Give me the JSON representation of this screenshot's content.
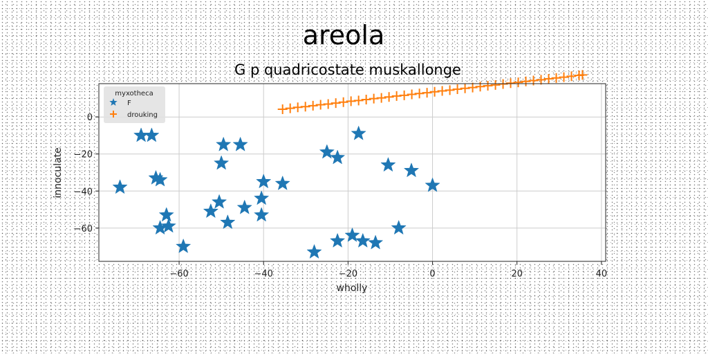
{
  "chart_data": {
    "type": "scatter",
    "title": "areola",
    "subtitle": "G p quadricostate muskallonge",
    "xlabel": "wholly",
    "ylabel": "innoculate",
    "xlim": [
      -79,
      41
    ],
    "ylim": [
      -78,
      18
    ],
    "xticks": [
      -60,
      -40,
      -20,
      0,
      20,
      40
    ],
    "xtick_labels": [
      "−60",
      "−40",
      "−20",
      "0",
      "20",
      "40"
    ],
    "yticks": [
      -60,
      -40,
      -20,
      0
    ],
    "ytick_labels": [
      "−60",
      "−40",
      "−20",
      "0"
    ],
    "grid": true,
    "legend": {
      "title": "myxotheca",
      "position": "top-left",
      "entries": [
        "F",
        "drouking"
      ]
    },
    "series": [
      {
        "name": "F",
        "marker": "star",
        "color": "#1f77b4",
        "points": [
          [
            -74,
            -38
          ],
          [
            -69,
            -10
          ],
          [
            -66.5,
            -10
          ],
          [
            -65.5,
            -33
          ],
          [
            -64.5,
            -34
          ],
          [
            -64.5,
            -60
          ],
          [
            -63,
            -53
          ],
          [
            -62.5,
            -59
          ],
          [
            -59,
            -70
          ],
          [
            -52.5,
            -51
          ],
          [
            -50.5,
            -46
          ],
          [
            -50,
            -25
          ],
          [
            -49.5,
            -15
          ],
          [
            -48.5,
            -57
          ],
          [
            -45.5,
            -15
          ],
          [
            -44.5,
            -49
          ],
          [
            -40.5,
            -44
          ],
          [
            -40.5,
            -53
          ],
          [
            -40,
            -35
          ],
          [
            -35.5,
            -36
          ],
          [
            -28,
            -73
          ],
          [
            -25,
            -19
          ],
          [
            -22.5,
            -22
          ],
          [
            -22.5,
            -67
          ],
          [
            -19,
            -64
          ],
          [
            -17.5,
            -9
          ],
          [
            -16.5,
            -67
          ],
          [
            -13.5,
            -68
          ],
          [
            -10.5,
            -26
          ],
          [
            -8,
            -60
          ],
          [
            -5,
            -29
          ],
          [
            0,
            -37
          ]
        ]
      },
      {
        "name": "drouking",
        "marker": "plus",
        "color": "#ff7f0e",
        "points": [
          [
            -35.5,
            4.2
          ],
          [
            -33.7,
            4.7
          ],
          [
            -31.9,
            5.2
          ],
          [
            -30.1,
            5.6
          ],
          [
            -28.3,
            6.1
          ],
          [
            -26.5,
            6.6
          ],
          [
            -24.7,
            7.0
          ],
          [
            -22.9,
            7.5
          ],
          [
            -21.1,
            8.0
          ],
          [
            -19.3,
            8.5
          ],
          [
            -17.5,
            8.9
          ],
          [
            -15.7,
            9.4
          ],
          [
            -13.9,
            9.9
          ],
          [
            -12.1,
            10.3
          ],
          [
            -10.3,
            10.8
          ],
          [
            -8.5,
            11.3
          ],
          [
            -6.7,
            11.7
          ],
          [
            -4.9,
            12.2
          ],
          [
            -3.1,
            12.7
          ],
          [
            -1.3,
            13.1
          ],
          [
            0.5,
            13.6
          ],
          [
            2.3,
            14.1
          ],
          [
            4.1,
            14.5
          ],
          [
            5.9,
            15.0
          ],
          [
            7.7,
            15.5
          ],
          [
            9.5,
            15.9
          ],
          [
            11.3,
            16.4
          ],
          [
            13.1,
            16.9
          ],
          [
            14.9,
            17.3
          ],
          [
            16.7,
            17.8
          ],
          [
            18.5,
            18.3
          ],
          [
            20.3,
            18.7
          ],
          [
            22.1,
            19.2
          ],
          [
            23.9,
            19.7
          ],
          [
            25.7,
            20.1
          ],
          [
            27.5,
            20.6
          ],
          [
            29.3,
            21.1
          ],
          [
            31.1,
            21.5
          ],
          [
            32.9,
            22.0
          ],
          [
            34.7,
            22.5
          ],
          [
            35.5,
            22.7
          ]
        ]
      }
    ]
  },
  "colors": {
    "axes": "#222222",
    "grid": "#cccccc",
    "legend_bg": "#e0e0e0"
  }
}
